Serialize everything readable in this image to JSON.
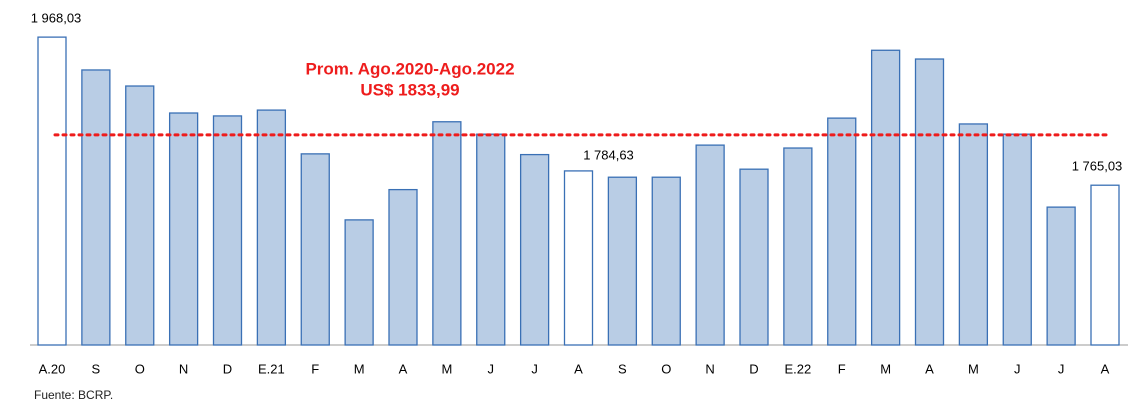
{
  "chart_data": {
    "type": "bar",
    "categories": [
      "A.20",
      "S",
      "O",
      "N",
      "D",
      "E.21",
      "F",
      "M",
      "A",
      "M",
      "J",
      "J",
      "A",
      "S",
      "O",
      "N",
      "D",
      "E.22",
      "F",
      "M",
      "A",
      "M",
      "J",
      "J",
      "A"
    ],
    "values": [
      1968.03,
      1923,
      1901,
      1864,
      1860,
      1868,
      1808,
      1717.5,
      1759,
      1852,
      1835,
      1807,
      1784.63,
      1776,
      1776,
      1820,
      1787,
      1816,
      1857,
      1950,
      1938,
      1849,
      1835,
      1735,
      1765.03
    ],
    "value_labels": [
      "1 968,03",
      null,
      null,
      null,
      null,
      null,
      null,
      null,
      null,
      null,
      null,
      null,
      "1 784,63",
      null,
      null,
      null,
      null,
      null,
      null,
      null,
      null,
      null,
      null,
      null,
      "1 765,03"
    ],
    "colors": [
      "#ffffff",
      "#b9cde5",
      "#b9cde5",
      "#b9cde5",
      "#b9cde5",
      "#b9cde5",
      "#b9cde5",
      "#b9cde5",
      "#b9cde5",
      "#b9cde5",
      "#b9cde5",
      "#b9cde5",
      "#ffffff",
      "#b9cde5",
      "#b9cde5",
      "#b9cde5",
      "#b9cde5",
      "#b9cde5",
      "#b9cde5",
      "#b9cde5",
      "#b9cde5",
      "#b9cde5",
      "#b9cde5",
      "#b9cde5",
      "#ffffff"
    ],
    "edge_color": "#3a70b5",
    "ylim": [
      1546,
      2010
    ],
    "reference_line": {
      "value": 1833.99,
      "color": "#ee1c1c",
      "label": [
        "Prom. Ago.2020-Ago.2022",
        "US$ 1833,99"
      ]
    },
    "source": "Fuente: BCRP."
  }
}
